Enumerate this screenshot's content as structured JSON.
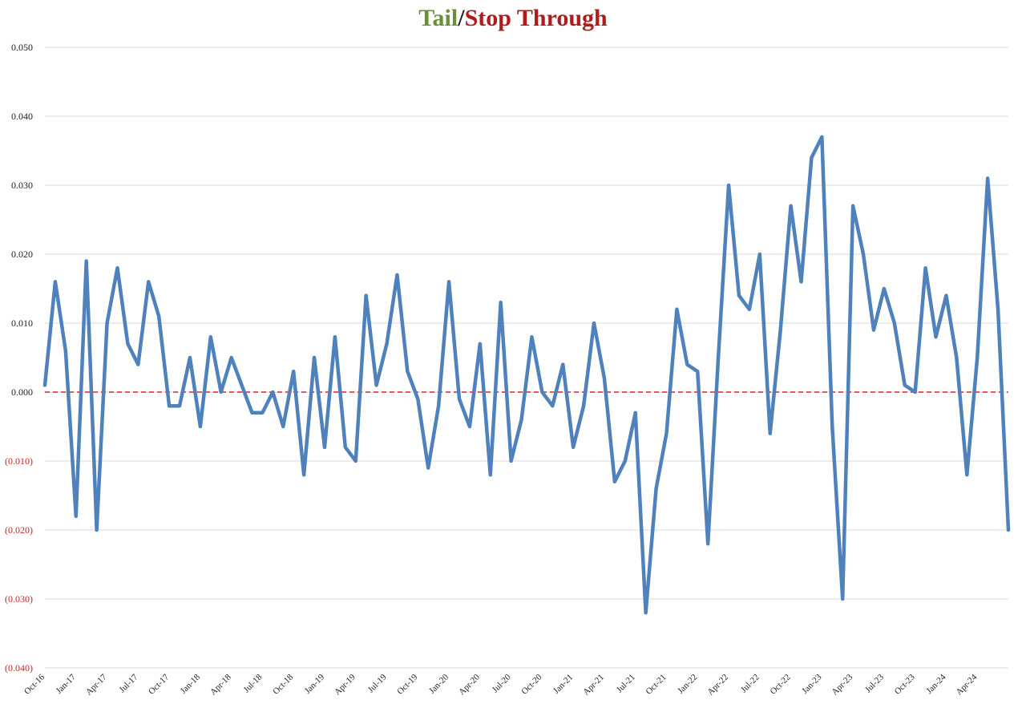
{
  "chart_data": {
    "type": "line",
    "title_parts": [
      {
        "text": "Tail",
        "color": "#6b8e3a"
      },
      {
        "text": "/",
        "color": "#222222"
      },
      {
        "text": "Stop Through",
        "color": "#b01c1c"
      }
    ],
    "xlabel": "",
    "ylabel": "",
    "ylim": [
      -0.04,
      0.05
    ],
    "y_ticks": [
      {
        "value": 0.05,
        "label": "0.050",
        "color": "#222222"
      },
      {
        "value": 0.04,
        "label": "0.040",
        "color": "#222222"
      },
      {
        "value": 0.03,
        "label": "0.030",
        "color": "#222222"
      },
      {
        "value": 0.02,
        "label": "0.020",
        "color": "#222222"
      },
      {
        "value": 0.01,
        "label": "0.010",
        "color": "#222222"
      },
      {
        "value": 0.0,
        "label": "0.000",
        "color": "#222222"
      },
      {
        "value": -0.01,
        "label": "(0.010)",
        "color": "#d42020"
      },
      {
        "value": -0.02,
        "label": "(0.020)",
        "color": "#d42020"
      },
      {
        "value": -0.03,
        "label": "(0.030)",
        "color": "#d42020"
      },
      {
        "value": -0.04,
        "label": "(0.040)",
        "color": "#d42020"
      }
    ],
    "x_tick_labels": [
      {
        "index": 0,
        "label": "Oct-16"
      },
      {
        "index": 3,
        "label": "Jan-17"
      },
      {
        "index": 6,
        "label": "Apr-17"
      },
      {
        "index": 9,
        "label": "Jul-17"
      },
      {
        "index": 12,
        "label": "Oct-17"
      },
      {
        "index": 15,
        "label": "Jan-18"
      },
      {
        "index": 18,
        "label": "Apr-18"
      },
      {
        "index": 21,
        "label": "Jul-18"
      },
      {
        "index": 24,
        "label": "Oct-18"
      },
      {
        "index": 27,
        "label": "Jan-19"
      },
      {
        "index": 30,
        "label": "Apr-19"
      },
      {
        "index": 33,
        "label": "Jul-19"
      },
      {
        "index": 36,
        "label": "Oct-19"
      },
      {
        "index": 39,
        "label": "Jan-20"
      },
      {
        "index": 42,
        "label": "Apr-20"
      },
      {
        "index": 45,
        "label": "Jul-20"
      },
      {
        "index": 48,
        "label": "Oct-20"
      },
      {
        "index": 51,
        "label": "Jan-21"
      },
      {
        "index": 54,
        "label": "Apr-21"
      },
      {
        "index": 57,
        "label": "Jul-21"
      },
      {
        "index": 60,
        "label": "Oct-21"
      },
      {
        "index": 63,
        "label": "Jan-22"
      },
      {
        "index": 66,
        "label": "Apr-22"
      },
      {
        "index": 69,
        "label": "Jul-22"
      },
      {
        "index": 72,
        "label": "Oct-22"
      },
      {
        "index": 75,
        "label": "Jan-23"
      },
      {
        "index": 78,
        "label": "Apr-23"
      },
      {
        "index": 81,
        "label": "Jul-23"
      },
      {
        "index": 84,
        "label": "Oct-23"
      },
      {
        "index": 87,
        "label": "Jan-24"
      },
      {
        "index": 90,
        "label": "Apr-24"
      }
    ],
    "series": [
      {
        "color": "#4f81bd",
        "start": "Oct-16",
        "values": [
          0.001,
          0.016,
          0.006,
          -0.018,
          0.019,
          -0.02,
          0.01,
          0.018,
          0.007,
          0.004,
          0.016,
          0.011,
          -0.002,
          -0.002,
          0.005,
          -0.005,
          0.008,
          0.0,
          0.005,
          0.001,
          -0.003,
          -0.003,
          0.0,
          -0.005,
          0.003,
          -0.012,
          0.005,
          -0.008,
          0.008,
          -0.008,
          -0.01,
          0.014,
          0.001,
          0.007,
          0.017,
          0.003,
          -0.001,
          -0.011,
          -0.002,
          0.016,
          -0.001,
          -0.005,
          0.007,
          -0.012,
          0.013,
          -0.01,
          -0.004,
          0.008,
          0.0,
          -0.002,
          0.004,
          -0.008,
          -0.002,
          0.01,
          0.002,
          -0.013,
          -0.01,
          -0.003,
          -0.032,
          -0.014,
          -0.006,
          0.012,
          0.004,
          0.003,
          -0.022,
          0.005,
          0.03,
          0.014,
          0.012,
          0.02,
          -0.006,
          0.009,
          0.027,
          0.016,
          0.034,
          0.037,
          -0.005,
          -0.03,
          0.027,
          0.02,
          0.009,
          0.015,
          0.01,
          0.001,
          0.0,
          0.018,
          0.008,
          0.014,
          0.005,
          -0.012,
          0.005,
          0.031,
          0.012,
          -0.02
        ]
      }
    ],
    "reference_line": {
      "value": 0.0,
      "color": "#e02020",
      "style": "dashed"
    },
    "grid": true,
    "legend": "none"
  }
}
